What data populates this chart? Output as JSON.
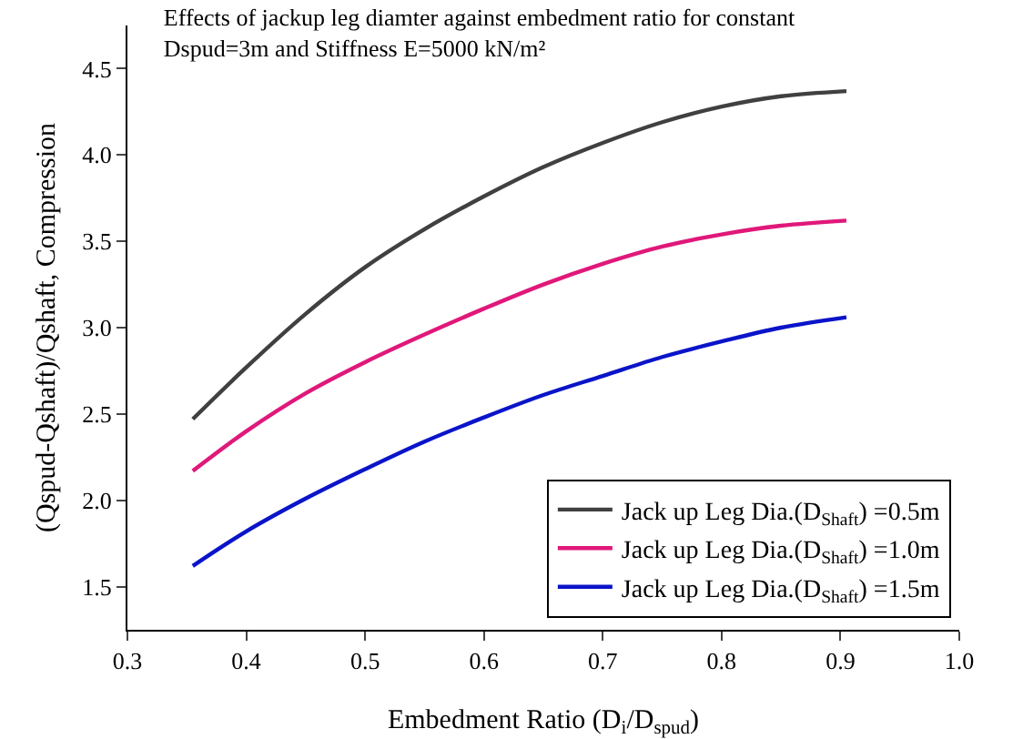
{
  "chart_data": {
    "type": "line",
    "title": "Effects of jackup leg diamter against embedment ratio for constant\nDspud=3m and Stiffness E=5000 kN/m²",
    "xlabel": "Embedment Ratio (D$_{i}$/D$_{spud}$)",
    "ylabel": "(Qspud-Qshaft)/Qshaft, Compression",
    "x": [
      0.355,
      0.4,
      0.45,
      0.5,
      0.55,
      0.6,
      0.65,
      0.7,
      0.75,
      0.8,
      0.85,
      0.905
    ],
    "series": [
      {
        "name": "Jack up Leg Dia.(D$_{Shaft}$) =0.5m",
        "color": "#404040",
        "values": [
          2.47,
          2.77,
          3.08,
          3.35,
          3.57,
          3.76,
          3.93,
          4.07,
          4.19,
          4.28,
          4.34,
          4.37
        ]
      },
      {
        "name": "Jack up Leg Dia.(D$_{Shaft}$) =1.0m",
        "color": "#e0187a",
        "values": [
          2.17,
          2.4,
          2.62,
          2.8,
          2.96,
          3.11,
          3.25,
          3.37,
          3.47,
          3.54,
          3.59,
          3.62
        ]
      },
      {
        "name": "Jack up Leg Dia.(D$_{Shaft}$) =1.5m",
        "color": "#0a14c8",
        "values": [
          1.62,
          1.82,
          2.01,
          2.18,
          2.34,
          2.48,
          2.61,
          2.72,
          2.83,
          2.92,
          3.0,
          3.06
        ]
      }
    ],
    "xlim": [
      0.3,
      1.0
    ],
    "xticks": [
      0.3,
      0.4,
      0.5,
      0.6,
      0.7,
      0.8,
      0.9,
      {
        "value": 1,
        "label": "1.0"
      }
    ],
    "ylim": [
      1.25,
      4.75
    ],
    "yticks": [
      1.5,
      {
        "value": 2,
        "label": "2.0"
      },
      2.5,
      {
        "value": 3,
        "label": "3.0"
      },
      3.5,
      {
        "value": 4,
        "label": "4.0"
      },
      4.5
    ],
    "grid": false,
    "legend": "bottom right",
    "marker": "none",
    "line_style": "solid"
  }
}
